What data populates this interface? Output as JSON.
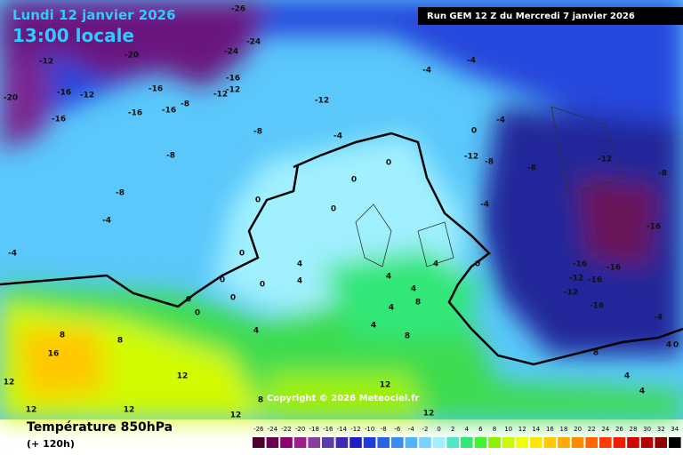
{
  "header": {
    "date": "Lundi 12 janvier 2026",
    "time": "13:00 locale",
    "run": "Run GEM 12 Z du Mercredi 7 janvier 2026"
  },
  "footer": {
    "title": "Température 850hPa",
    "subtitle": "(+ 120h)",
    "copyright": "Copyright © 2026 Meteociel.fr"
  },
  "legend": {
    "ticks": [
      -26,
      -24,
      -22,
      -20,
      -18,
      -16,
      -14,
      -12,
      -10,
      -8,
      -6,
      -4,
      -2,
      0,
      2,
      4,
      6,
      8,
      10,
      12,
      14,
      16,
      18,
      20,
      22,
      24,
      26,
      28,
      30,
      32,
      34
    ],
    "colors": [
      "#4b0030",
      "#6a0050",
      "#8c0070",
      "#a01e8c",
      "#8c3ca0",
      "#5a3caa",
      "#3c28b4",
      "#1e1ec8",
      "#1e3cdc",
      "#2864e6",
      "#3c8cf0",
      "#50b4fa",
      "#78d2ff",
      "#a0f0ff",
      "#50e6c8",
      "#32e678",
      "#46f032",
      "#8cf000",
      "#c8fa00",
      "#f0ff00",
      "#ffe600",
      "#ffc800",
      "#ffaa00",
      "#ff8c00",
      "#ff6400",
      "#ff3c00",
      "#f01e00",
      "#d20000",
      "#b40000",
      "#8c0000",
      "#000000"
    ]
  },
  "map_labels": [
    -26,
    -24,
    -20,
    -24,
    -16,
    -12,
    -12,
    -16,
    -12,
    -16,
    -12,
    -16,
    -16,
    -8,
    -20,
    -16,
    -12,
    -8,
    -4,
    -8,
    -8,
    -4,
    -4,
    -4,
    -4,
    -4,
    0,
    -12,
    -8,
    -8,
    -12,
    -8,
    -4,
    -16,
    -16,
    -16,
    -12,
    -16,
    -12,
    -16,
    -4,
    0,
    0,
    0,
    0,
    0,
    0,
    0,
    0,
    0,
    0,
    4,
    4,
    4,
    4,
    4,
    8,
    8,
    4,
    0,
    4,
    4,
    8,
    8,
    16,
    12,
    12,
    12,
    12,
    12,
    12,
    8,
    12,
    4,
    4,
    8,
    4,
    0
  ]
}
